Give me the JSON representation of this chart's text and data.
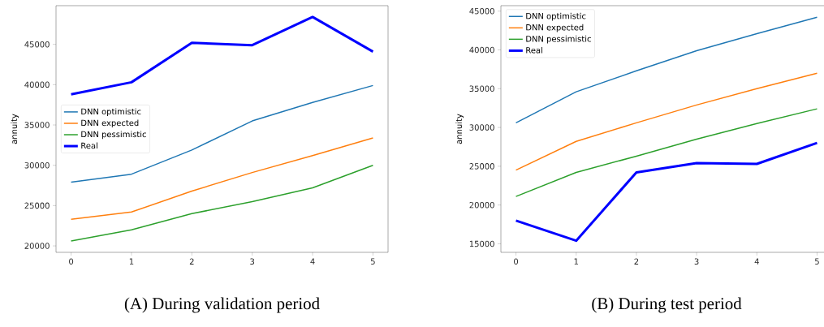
{
  "chart_data": [
    {
      "type": "line",
      "title": "(A) During validation period",
      "ylabel": "annuity",
      "x": [
        0,
        1,
        2,
        3,
        4,
        5
      ],
      "xlim": [
        -0.25,
        5.25
      ],
      "xticks": [
        0,
        1,
        2,
        3,
        4,
        5
      ],
      "ylim": [
        19200,
        49800
      ],
      "yticks": [
        20000,
        25000,
        30000,
        35000,
        40000,
        45000
      ],
      "legend": "left",
      "grid": false,
      "series": [
        {
          "name": "DNN optimistic",
          "color": "#1f77b4",
          "values": [
            27900,
            28900,
            31900,
            35500,
            37800,
            39900
          ]
        },
        {
          "name": "DNN expected",
          "color": "#ff7f0e",
          "values": [
            23300,
            24200,
            26800,
            29100,
            31200,
            33400
          ]
        },
        {
          "name": "DNN pessimistic",
          "color": "#2ca02c",
          "values": [
            20600,
            22000,
            24000,
            25500,
            27200,
            30000
          ]
        },
        {
          "name": "Real",
          "color": "#0000ff",
          "values": [
            38800,
            40300,
            45200,
            44900,
            48400,
            44100
          ]
        }
      ]
    },
    {
      "type": "line",
      "title": "(B) During test period",
      "ylabel": "annuity",
      "x": [
        0,
        1,
        2,
        3,
        4,
        5
      ],
      "xlim": [
        -0.25,
        5.25
      ],
      "xticks": [
        0,
        1,
        2,
        3,
        4,
        5
      ],
      "ylim": [
        13900,
        45700
      ],
      "yticks": [
        15000,
        20000,
        25000,
        30000,
        35000,
        40000,
        45000
      ],
      "legend": "top left",
      "grid": false,
      "series": [
        {
          "name": "DNN optimistic",
          "color": "#1f77b4",
          "values": [
            30600,
            34600,
            37300,
            39900,
            42100,
            44200
          ]
        },
        {
          "name": "DNN expected",
          "color": "#ff7f0e",
          "values": [
            24500,
            28200,
            30600,
            32900,
            35000,
            37000
          ]
        },
        {
          "name": "DNN pessimistic",
          "color": "#2ca02c",
          "values": [
            21100,
            24200,
            26300,
            28500,
            30500,
            32400
          ]
        },
        {
          "name": "Real",
          "color": "#0000ff",
          "values": [
            18000,
            15400,
            24200,
            25400,
            25300,
            28000
          ]
        }
      ]
    }
  ]
}
